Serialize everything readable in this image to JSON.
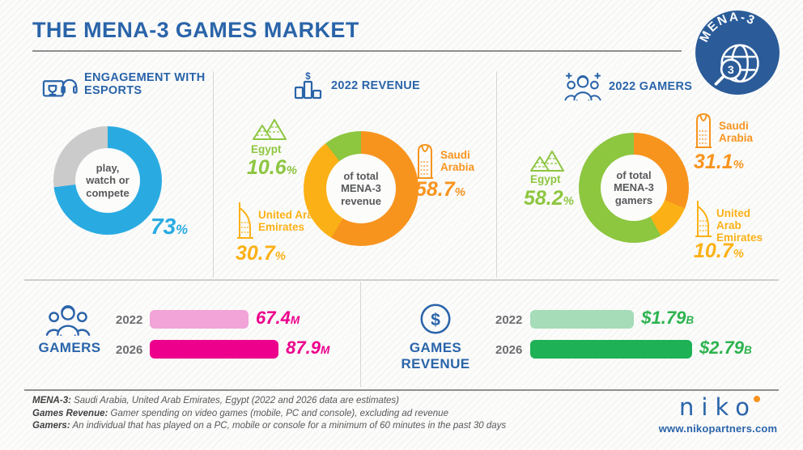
{
  "header": {
    "title": "THE MENA-3 GAMES MARKET",
    "badge_label": "MENA-3",
    "badge_number": "3"
  },
  "colors": {
    "heading_blue": "#2a64a9",
    "badge_blue": "#2b5c99",
    "cyan": "#29abe2",
    "gray_segment": "#cbcbcb",
    "orange_saudi": "#f7941e",
    "yellow_uae": "#fbb116",
    "green_egypt": "#8dc63f",
    "pink_light": "#f2a3d8",
    "magenta": "#ec008c",
    "green_light": "#a6dcb8",
    "green_dark": "#1eb155"
  },
  "esports": {
    "heading_line1": "ENGAGEMENT WITH",
    "heading_line2": "ESPORTS",
    "center_line1": "play,",
    "center_line2": "watch or",
    "center_line3": "compete",
    "value": "73",
    "pct": "%"
  },
  "revenue": {
    "heading": "2022 REVENUE",
    "dollar_symbol": "$",
    "center_line1": "of total",
    "center_line2": "MENA-3",
    "center_line3": "revenue",
    "legend": {
      "egypt": {
        "name": "Egypt",
        "value": "10.6",
        "pct": "%"
      },
      "saudi": {
        "name_line1": "Saudi",
        "name_line2": "Arabia",
        "value": "58.7",
        "pct": "%"
      },
      "uae": {
        "name_line1": "United Arab",
        "name_line2": "Emirates",
        "value": "30.7",
        "pct": "%"
      }
    }
  },
  "gamers": {
    "heading": "2022 GAMERS",
    "center_line1": "of total",
    "center_line2": "MENA-3",
    "center_line3": "gamers",
    "legend": {
      "egypt": {
        "name": "Egypt",
        "value": "58.2",
        "pct": "%"
      },
      "saudi": {
        "name_line1": "Saudi",
        "name_line2": "Arabia",
        "value": "31.1",
        "pct": "%"
      },
      "uae": {
        "name_line1": "United Arab",
        "name_line2": "Emirates",
        "value": "10.7",
        "pct": "%"
      }
    }
  },
  "gamers_bars": {
    "label": "GAMERS",
    "rows": [
      {
        "year": "2022",
        "value": "67.4",
        "unit": "M"
      },
      {
        "year": "2026",
        "value": "87.9",
        "unit": "M"
      }
    ]
  },
  "revenue_bars": {
    "label": "GAMES REVENUE",
    "dollar_symbol": "$",
    "rows": [
      {
        "year": "2022",
        "value": "$1.79",
        "unit": "B"
      },
      {
        "year": "2026",
        "value": "$2.79",
        "unit": "B"
      }
    ]
  },
  "footer": {
    "notes": [
      {
        "lead": "MENA-3:",
        "text": " Saudi Arabia, United Arab Emirates, Egypt (2022 and 2026 data are estimates)"
      },
      {
        "lead": "Games Revenue:",
        "text": " Gamer spending on video games (mobile, PC and console), excluding ad revenue"
      },
      {
        "lead": "Gamers:",
        "text": " An individual that has played on a PC, mobile or console for a minimum of 60 minutes in the past 30 days"
      }
    ],
    "logo_text": "niko",
    "website": "www.nikopartners.com"
  },
  "chart_data": [
    {
      "type": "pie",
      "variant": "donut",
      "title": "ENGAGEMENT WITH ESPORTS",
      "center_label": "play, watch or compete",
      "data_label": "73%",
      "start_angle_deg": 0,
      "direction": "clockwise",
      "segments": [
        {
          "label": "play, watch or compete",
          "value": 73,
          "color": "#29abe2"
        },
        {
          "label": "remainder",
          "value": 27,
          "color": "#cbcbcb"
        }
      ]
    },
    {
      "type": "pie",
      "variant": "donut",
      "title": "2022 REVENUE",
      "center_label": "of total MENA-3 revenue",
      "start_angle_deg": 0,
      "direction": "clockwise",
      "segments": [
        {
          "label": "Saudi Arabia",
          "value": 58.7,
          "color": "#f7941e"
        },
        {
          "label": "United Arab Emirates",
          "value": 30.7,
          "color": "#fbb116"
        },
        {
          "label": "Egypt",
          "value": 10.6,
          "color": "#8dc63f"
        }
      ]
    },
    {
      "type": "pie",
      "variant": "donut",
      "title": "2022 GAMERS",
      "center_label": "of total MENA-3 gamers",
      "start_angle_deg": 0,
      "direction": "clockwise",
      "segments": [
        {
          "label": "Saudi Arabia",
          "value": 31.1,
          "color": "#f7941e"
        },
        {
          "label": "United Arab Emirates",
          "value": 10.7,
          "color": "#fbb116"
        },
        {
          "label": "Egypt",
          "value": 58.2,
          "color": "#8dc63f"
        }
      ]
    },
    {
      "type": "bar",
      "orientation": "horizontal",
      "title": "GAMERS",
      "categories": [
        "2022",
        "2026"
      ],
      "values": [
        67.4,
        87.9
      ],
      "unit": "M",
      "data_labels": [
        "67.4 M",
        "87.9 M"
      ],
      "colors": [
        "#f2a3d8",
        "#ec008c"
      ],
      "xlim": [
        0,
        95
      ]
    },
    {
      "type": "bar",
      "orientation": "horizontal",
      "title": "GAMES REVENUE",
      "categories": [
        "2022",
        "2026"
      ],
      "values": [
        1.79,
        2.79
      ],
      "unit": "B",
      "data_labels": [
        "$1.79 B",
        "$2.79 B"
      ],
      "colors": [
        "#a6dcb8",
        "#1eb155"
      ],
      "xlim": [
        0,
        3
      ]
    }
  ]
}
